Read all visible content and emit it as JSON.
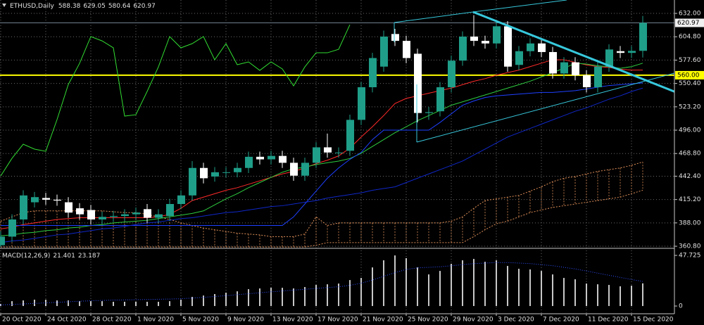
{
  "chart_data": [
    {
      "type": "candlestick",
      "title": "ETHUSD,Daily",
      "categories": [
        "20 Oct 2020",
        null,
        null,
        null,
        "24 Oct 2020",
        null,
        null,
        null,
        "28 Oct 2020",
        null,
        null,
        null,
        "1 Nov 2020",
        null,
        null,
        null,
        "5 Nov 2020",
        null,
        null,
        null,
        "9 Nov 2020",
        null,
        null,
        null,
        "13 Nov 2020",
        null,
        null,
        null,
        "17 Nov 2020",
        null,
        null,
        null,
        "21 Nov 2020",
        null,
        null,
        null,
        "25 Nov 2020",
        null,
        null,
        null,
        "29 Nov 2020",
        null,
        null,
        null,
        "3 Dec 2020",
        null,
        null,
        null,
        "7 Dec 2020",
        null,
        null,
        null,
        "11 Dec 2020",
        null,
        null,
        null,
        "15 Dec 2020",
        null
      ],
      "open": [
        362,
        372,
        392,
        412,
        417,
        415,
        412,
        405,
        403,
        392,
        395,
        396,
        398,
        404,
        394,
        396,
        410,
        420,
        452,
        442,
        447,
        447,
        452,
        465,
        462,
        466,
        458,
        443,
        458,
        476,
        470,
        472,
        508,
        546,
        570,
        608,
        600,
        585,
        516,
        518,
        546,
        577,
        605,
        600,
        597,
        617,
        572,
        588,
        597,
        587,
        562,
        575,
        560,
        546,
        570,
        588,
        586,
        588.38
      ],
      "high": [
        378,
        398,
        426,
        424,
        423,
        421,
        418,
        411,
        409,
        401,
        402,
        404,
        406,
        410,
        404,
        416,
        426,
        460,
        458,
        453,
        453,
        458,
        471,
        471,
        472,
        472,
        464,
        464,
        482,
        492,
        476,
        514,
        552,
        586,
        612,
        614,
        606,
        591,
        523,
        552,
        583,
        611,
        630,
        606,
        622,
        623,
        594,
        603,
        603,
        593,
        581,
        581,
        566,
        576,
        596,
        594,
        594,
        629.05
      ],
      "low": [
        360,
        366,
        386,
        406,
        409,
        408,
        394,
        392,
        386,
        386,
        389,
        390,
        392,
        388,
        388,
        390,
        404,
        414,
        434,
        436,
        441,
        441,
        446,
        456,
        456,
        452,
        437,
        437,
        452,
        464,
        464,
        466,
        502,
        540,
        564,
        594,
        574,
        505,
        508,
        512,
        540,
        571,
        594,
        591,
        591,
        564,
        566,
        582,
        581,
        556,
        556,
        554,
        540,
        540,
        564,
        580,
        580,
        580.64
      ],
      "close": [
        372,
        392,
        420,
        418,
        415,
        414,
        400,
        398,
        392,
        395,
        396,
        398,
        400,
        394,
        398,
        410,
        420,
        452,
        440,
        447,
        447,
        452,
        465,
        462,
        466,
        458,
        443,
        458,
        476,
        470,
        470,
        508,
        546,
        580,
        605,
        600,
        580,
        516,
        517,
        546,
        577,
        605,
        600,
        597,
        617,
        570,
        588,
        597,
        587,
        562,
        575,
        560,
        546,
        570,
        590,
        586,
        588.38,
        620.97
      ],
      "up_color": "#1f9e89",
      "down_color": "#ffffff",
      "overlays": [
        {
          "color": "#ff2a2a",
          "values": [
            381,
            383,
            386,
            388,
            390,
            392,
            393,
            394,
            394,
            394,
            394,
            394,
            394,
            394,
            395,
            398,
            405,
            414,
            418,
            422,
            426,
            429,
            433,
            437,
            441,
            445,
            448,
            452,
            457,
            461,
            466,
            475,
            488,
            500,
            513,
            527,
            533,
            536,
            539,
            542,
            545,
            549,
            553,
            556,
            560,
            563,
            566,
            570,
            574,
            578,
            578,
            575,
            572,
            570,
            569,
            567,
            566,
            566
          ]
        },
        {
          "color": "#2ecc40",
          "values": [
            373,
            374,
            376,
            377,
            379,
            380,
            382,
            383,
            385,
            386,
            388,
            389,
            390,
            391,
            393,
            395,
            397,
            399,
            402,
            409,
            416,
            422,
            429,
            435,
            441,
            447,
            451,
            453,
            456,
            458,
            460,
            463,
            469,
            477,
            485,
            493,
            500,
            507,
            513,
            519,
            525,
            529,
            533,
            537,
            541,
            545,
            549,
            553,
            558,
            563,
            568,
            574,
            573,
            571,
            570,
            568,
            570,
            574
          ]
        },
        {
          "color": "#1e40ff",
          "values": [
            385,
            385,
            385,
            385,
            385,
            385,
            385,
            385,
            385,
            385,
            385,
            385,
            385,
            385,
            385,
            385,
            385,
            385,
            385,
            385,
            385,
            385,
            385,
            385,
            385,
            385,
            395,
            410,
            425,
            440,
            452,
            462,
            470,
            485,
            496,
            496,
            496,
            496,
            496,
            505,
            515,
            525,
            530,
            534,
            536,
            537,
            538,
            539,
            540,
            540,
            541,
            542,
            544,
            546,
            548,
            549,
            550,
            551
          ]
        },
        {
          "color": "#1028c8",
          "values": [
            365,
            367,
            368,
            370,
            372,
            374,
            375,
            377,
            379,
            381,
            382,
            384,
            386,
            388,
            389,
            391,
            393,
            394,
            396,
            398,
            400,
            401,
            403,
            405,
            407,
            408,
            410,
            412,
            414,
            417,
            419,
            421,
            423,
            426,
            428,
            430,
            435,
            440,
            445,
            450,
            455,
            460,
            467,
            474,
            481,
            488,
            493,
            498,
            503,
            508,
            513,
            518,
            522,
            527,
            532,
            536,
            541,
            545
          ]
        },
        {
          "color": "#32dc32",
          "values": [
            442.7,
            463.2,
            479.6,
            473.9,
            471.4,
            508.3,
            549.2,
            573.8,
            605,
            600,
            591.9,
            512.4,
            514,
            541.1,
            569.7,
            605,
            591.9,
            596.8,
            605,
            577.9,
            596.8,
            572.2,
            575.5,
            565.6,
            575.5,
            567.3,
            547.6,
            569.7,
            586.1,
            586.1,
            590.2,
            618.9,
            null,
            null,
            null,
            null,
            null,
            null,
            null,
            null,
            null,
            null,
            null,
            null,
            null,
            null,
            null,
            null,
            null,
            null,
            null,
            null,
            null,
            null,
            null,
            null,
            null,
            null
          ]
        }
      ],
      "cloud": {
        "color": "#e0905a",
        "upper": [
          390,
          395,
          400,
          402,
          402,
          402,
          402,
          402,
          402,
          402,
          401,
          400,
          400,
          398,
          395,
          392,
          388,
          385,
          382,
          380,
          378,
          376,
          375,
          374,
          372,
          372,
          372,
          375,
          395,
          385,
          388,
          388,
          388,
          388,
          388,
          388,
          388,
          388,
          388,
          388,
          390,
          395,
          405,
          414,
          416,
          418,
          420,
          425,
          430,
          436,
          440,
          442,
          445,
          448,
          450,
          452,
          455,
          459
        ],
        "lower": [
          360,
          360,
          360,
          360,
          360,
          360,
          360,
          360,
          360,
          360,
          360,
          360,
          360,
          360,
          360,
          360,
          360,
          360,
          360,
          360,
          360,
          360,
          360,
          360,
          360,
          360,
          360,
          360,
          362,
          365,
          365,
          365,
          365,
          365,
          365,
          365,
          365,
          365,
          365,
          365,
          365,
          365,
          372,
          380,
          387,
          390,
          395,
          400,
          403,
          406,
          408,
          410,
          412,
          414,
          416,
          418,
          422,
          426
        ]
      },
      "levels": [
        {
          "value": 560,
          "label": "560.00",
          "color": "#ffff00"
        }
      ],
      "ylim": [
        359.2,
        647.6
      ],
      "yticks": [
        {
          "value": 632,
          "label": "632.00"
        },
        {
          "value": 604.8,
          "label": "604.80"
        },
        {
          "value": 577.6,
          "label": "577.60"
        },
        {
          "value": 550.4,
          "label": "550.40"
        },
        {
          "value": 523.2,
          "label": "523.20"
        },
        {
          "value": 496,
          "label": "496.00"
        },
        {
          "value": 468.8,
          "label": "468.80"
        },
        {
          "value": 442.4,
          "label": "442.40"
        },
        {
          "value": 415.2,
          "label": "415.20"
        },
        {
          "value": 388,
          "label": "388.00"
        },
        {
          "value": 360.8,
          "label": "360.80"
        }
      ],
      "grid": true
    },
    {
      "type": "bar",
      "title": "MACD(12,26,9)",
      "series": [
        {
          "type": "bar",
          "color": "#c8c8c8",
          "values": [
            2.0,
            4.6,
            5.3,
            6.0,
            6.0,
            5.3,
            5.3,
            4.6,
            4.6,
            4.6,
            4.0,
            4.0,
            4.0,
            4.0,
            4.0,
            4.6,
            6.0,
            8.6,
            9.9,
            11.3,
            12.6,
            13.9,
            15.9,
            16.6,
            17.2,
            17.2,
            16.6,
            17.9,
            19.9,
            20.5,
            21.2,
            24.5,
            26.5,
            36.4,
            43.1,
            47.7,
            45.1,
            36.4,
            29.8,
            33.1,
            39.8,
            43.1,
            44.4,
            41.7,
            43.1,
            37.8,
            35.1,
            34.5,
            33.1,
            29.8,
            26.5,
            25.2,
            21.2,
            20.5,
            19.9,
            18.6,
            19.2,
            21.401
          ]
        },
        {
          "type": "line",
          "color": "#2f4fff",
          "values": [
            1,
            1.5,
            2,
            2.5,
            3,
            3.5,
            4,
            4.5,
            5,
            5.3,
            5.6,
            5.8,
            6,
            6.2,
            6.4,
            6.6,
            6.9,
            7.5,
            8.2,
            9,
            9.8,
            10.7,
            11.6,
            12.5,
            13.4,
            14.2,
            15,
            15.8,
            16.6,
            17.4,
            18.2,
            19.5,
            21.5,
            24.5,
            28,
            31.5,
            34.5,
            36,
            36.5,
            37,
            38,
            39,
            40,
            40.5,
            41,
            41,
            40.5,
            40,
            39,
            38,
            36.5,
            35,
            33,
            31,
            29,
            27,
            25,
            23.187
          ]
        }
      ],
      "ylim": [
        -6.6,
        52.4
      ],
      "yticks": [
        47.725,
        0
      ],
      "grid": true
    }
  ]
}
